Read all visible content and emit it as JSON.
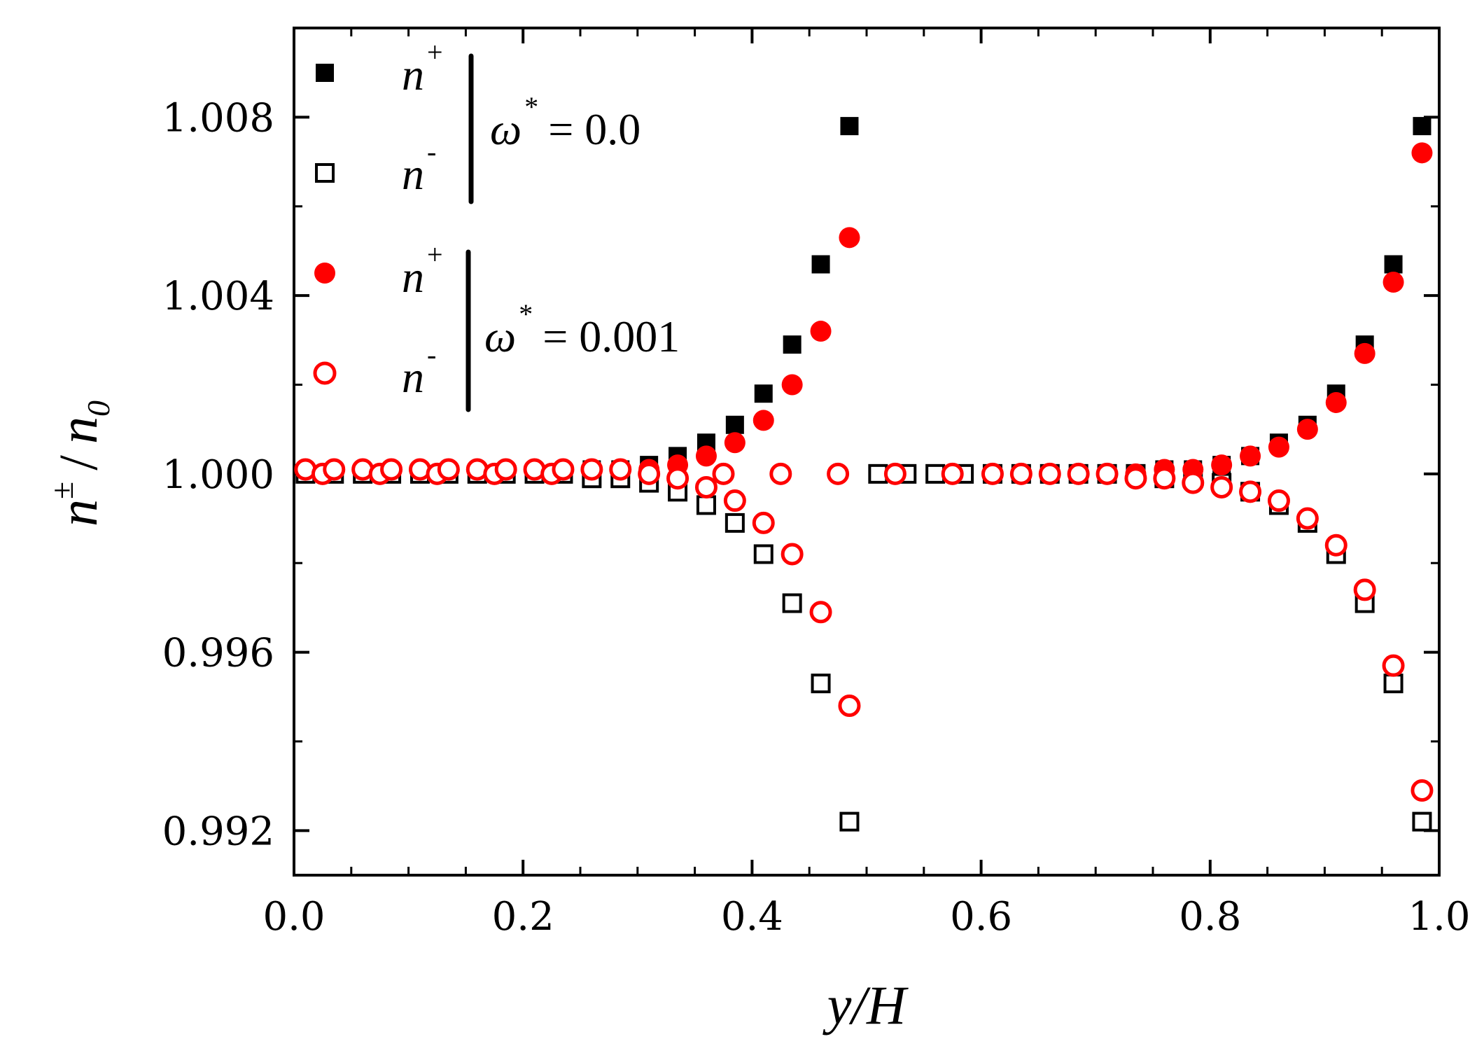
{
  "chart_data": {
    "type": "scatter",
    "title": "",
    "xlabel": "y/H",
    "ylabel_main": "n",
    "ylabel_sup": "±",
    "ylabel_tail": "/",
    "ylabel_denom": "n",
    "ylabel_denom_sub": "0",
    "xlim": [
      0.0,
      1.0
    ],
    "ylim": [
      0.991,
      1.01
    ],
    "x_ticks": [
      0.0,
      0.2,
      0.4,
      0.6,
      0.8,
      1.0
    ],
    "x_tick_labels": [
      "0.0",
      "0.2",
      "0.4",
      "0.6",
      "0.8",
      "1.0"
    ],
    "y_ticks": [
      0.992,
      0.996,
      1.0,
      1.004,
      1.008
    ],
    "y_tick_labels": [
      "0.992",
      "0.996",
      "1.000",
      "1.004",
      "1.008"
    ],
    "legend_position": "top-left",
    "legend": {
      "group1": {
        "omega_label": "ω",
        "omega_sup": "*",
        "omega_value": "= 0.0"
      },
      "group2": {
        "omega_label": "ω",
        "omega_sup": "*",
        "omega_value": "= 0.001"
      },
      "entries": [
        {
          "symbol": "n",
          "sup": "+"
        },
        {
          "symbol": "n",
          "sup": "-"
        },
        {
          "symbol": "n",
          "sup": "+"
        },
        {
          "symbol": "n",
          "sup": "-"
        }
      ]
    },
    "series": [
      {
        "name": "n+ (ω*=0.0)",
        "marker": "square-filled",
        "color": "#000000",
        "x": [
          0.01,
          0.035,
          0.06,
          0.085,
          0.11,
          0.135,
          0.16,
          0.185,
          0.21,
          0.235,
          0.26,
          0.285,
          0.31,
          0.335,
          0.36,
          0.385,
          0.41,
          0.435,
          0.46,
          0.485,
          0.51,
          0.535,
          0.56,
          0.585,
          0.61,
          0.635,
          0.66,
          0.685,
          0.71,
          0.735,
          0.76,
          0.785,
          0.81,
          0.835,
          0.86,
          0.885,
          0.91,
          0.935,
          0.96,
          0.985
        ],
        "y": [
          1.0,
          1.0,
          1.0,
          1.0,
          1.0,
          1.0,
          1.0,
          1.0,
          1.0,
          1.0,
          1.0001,
          1.0001,
          1.0002,
          1.0004,
          1.0007,
          1.0011,
          1.0018,
          1.0029,
          1.0047,
          1.0078,
          1.0,
          1.0,
          1.0,
          1.0,
          1.0,
          1.0,
          1.0,
          1.0,
          1.0,
          1.0,
          1.0001,
          1.0001,
          1.0002,
          1.0004,
          1.0007,
          1.0011,
          1.0018,
          1.0029,
          1.0047,
          1.0078
        ]
      },
      {
        "name": "n- (ω*=0.0)",
        "marker": "square-open",
        "color": "#000000",
        "x": [
          0.01,
          0.035,
          0.06,
          0.085,
          0.11,
          0.135,
          0.16,
          0.185,
          0.21,
          0.235,
          0.26,
          0.285,
          0.31,
          0.335,
          0.36,
          0.385,
          0.41,
          0.435,
          0.46,
          0.485,
          0.51,
          0.535,
          0.56,
          0.585,
          0.61,
          0.635,
          0.66,
          0.685,
          0.71,
          0.735,
          0.76,
          0.785,
          0.81,
          0.835,
          0.86,
          0.885,
          0.91,
          0.935,
          0.96,
          0.985
        ],
        "y": [
          1.0,
          1.0,
          1.0,
          1.0,
          1.0,
          1.0,
          1.0,
          1.0,
          1.0,
          1.0,
          0.9999,
          0.9999,
          0.9998,
          0.9996,
          0.9993,
          0.9989,
          0.9982,
          0.9971,
          0.9953,
          0.9922,
          1.0,
          1.0,
          1.0,
          1.0,
          1.0,
          1.0,
          1.0,
          1.0,
          1.0,
          1.0,
          0.9999,
          0.9999,
          0.9998,
          0.9996,
          0.9993,
          0.9989,
          0.9982,
          0.9971,
          0.9953,
          0.9922
        ]
      },
      {
        "name": "n+ (ω*=0.001)",
        "marker": "circle-filled",
        "color": "#ff0000",
        "x": [
          0.01,
          0.025,
          0.035,
          0.06,
          0.075,
          0.085,
          0.11,
          0.125,
          0.135,
          0.16,
          0.175,
          0.185,
          0.21,
          0.225,
          0.235,
          0.26,
          0.285,
          0.31,
          0.335,
          0.36,
          0.385,
          0.41,
          0.435,
          0.46,
          0.485,
          0.525,
          0.575,
          0.61,
          0.635,
          0.66,
          0.685,
          0.71,
          0.735,
          0.76,
          0.785,
          0.81,
          0.835,
          0.86,
          0.885,
          0.91,
          0.935,
          0.96,
          0.985
        ],
        "y": [
          1.0001,
          1.0,
          1.0001,
          1.0001,
          1.0,
          1.0001,
          1.0001,
          1.0,
          1.0001,
          1.0001,
          1.0,
          1.0001,
          1.0001,
          1.0,
          1.0001,
          1.0001,
          1.0001,
          1.0001,
          1.0002,
          1.0004,
          1.0007,
          1.0012,
          1.002,
          1.0032,
          1.0053,
          1.0,
          1.0,
          1.0,
          1.0,
          1.0,
          1.0,
          1.0,
          1.0,
          1.0001,
          1.0001,
          1.0002,
          1.0004,
          1.0006,
          1.001,
          1.0016,
          1.0027,
          1.0043,
          1.0072
        ]
      },
      {
        "name": "n- (ω*=0.001)",
        "marker": "circle-open",
        "color": "#ff0000",
        "x": [
          0.01,
          0.025,
          0.035,
          0.06,
          0.075,
          0.085,
          0.11,
          0.125,
          0.135,
          0.16,
          0.175,
          0.185,
          0.21,
          0.225,
          0.235,
          0.26,
          0.285,
          0.31,
          0.335,
          0.36,
          0.375,
          0.385,
          0.41,
          0.425,
          0.435,
          0.46,
          0.475,
          0.485,
          0.525,
          0.575,
          0.61,
          0.635,
          0.66,
          0.685,
          0.71,
          0.735,
          0.76,
          0.785,
          0.81,
          0.835,
          0.86,
          0.885,
          0.91,
          0.935,
          0.96,
          0.985
        ],
        "y": [
          1.0001,
          1.0,
          1.0001,
          1.0001,
          1.0,
          1.0001,
          1.0001,
          1.0,
          1.0001,
          1.0001,
          1.0,
          1.0001,
          1.0001,
          1.0,
          1.0001,
          1.0001,
          1.0001,
          1.0,
          0.9999,
          0.9997,
          1.0,
          0.9994,
          0.9989,
          1.0,
          0.9982,
          0.9969,
          1.0,
          0.9948,
          1.0,
          1.0,
          1.0,
          1.0,
          1.0,
          1.0,
          1.0,
          0.9999,
          0.9999,
          0.9998,
          0.9997,
          0.9996,
          0.9994,
          0.999,
          0.9984,
          0.9974,
          0.9957,
          0.9929
        ]
      }
    ]
  }
}
